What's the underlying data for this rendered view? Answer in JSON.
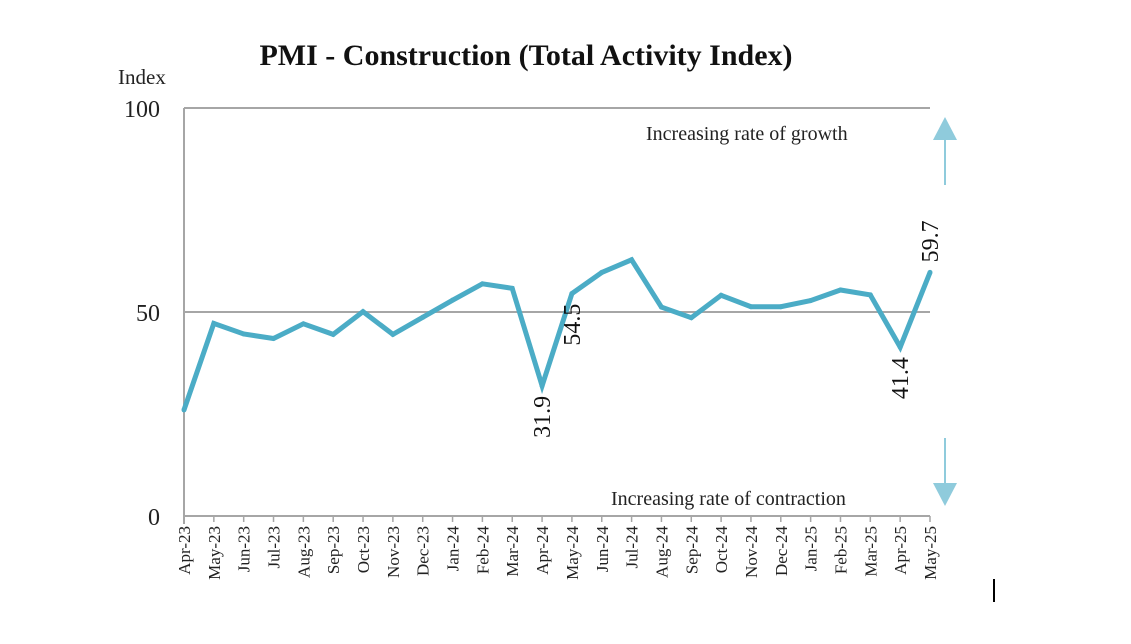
{
  "chart_data": {
    "type": "line",
    "title": "PMI - Construction (Total Activity Index)",
    "ylabel": "Index",
    "xlabel": "",
    "ylim": [
      0,
      100
    ],
    "yticks": [
      "0",
      "50",
      "100"
    ],
    "categories": [
      "Apr-23",
      "May-23",
      "Jun-23",
      "Jul-23",
      "Aug-23",
      "Sep-23",
      "Oct-23",
      "Nov-23",
      "Dec-23",
      "Jan-24",
      "Feb-24",
      "Mar-24",
      "Apr-24",
      "May-24",
      "Jun-24",
      "Jul-24",
      "Aug-24",
      "Sep-24",
      "Oct-24",
      "Nov-24",
      "Dec-24",
      "Jan-25",
      "Feb-25",
      "Mar-25",
      "Apr-25",
      "May-25"
    ],
    "series": [
      {
        "name": "Total Activity Index",
        "color": "#4BACC6",
        "values": [
          26.0,
          47.2,
          44.6,
          43.5,
          47.1,
          44.5,
          50.1,
          44.5,
          48.7,
          52.9,
          56.9,
          55.8,
          31.9,
          54.5,
          59.7,
          62.8,
          51.2,
          48.6,
          54.1,
          51.3,
          51.3,
          52.8,
          55.4,
          54.2,
          41.4,
          59.7
        ]
      }
    ],
    "data_labels": [
      {
        "index": 12,
        "text": "31.9"
      },
      {
        "index": 13,
        "text": "54.5"
      },
      {
        "index": 24,
        "text": "41.4"
      },
      {
        "index": 25,
        "text": "59.7"
      }
    ],
    "annotations": {
      "growth": "Increasing rate of growth",
      "contraction": "Increasing rate of contraction"
    },
    "arrow_color": "#8FCBDC",
    "grid_color": "#A6A6A6",
    "legend": "none"
  }
}
